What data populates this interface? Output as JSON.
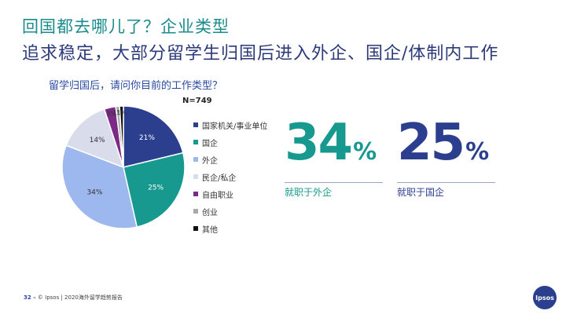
{
  "header": {
    "title": "回国都去哪儿了？企业类型",
    "subtitle": "追求稳定，大部分留学生归国后进入外企、国企/体制内工作"
  },
  "chart_data": {
    "type": "pie",
    "title": "留学归国后，请问你目前的工作类型？",
    "sample": "N=749",
    "slices": [
      {
        "label": "国家机关/事业单位",
        "value": 21,
        "display": "21%",
        "color": "#2c3f8f"
      },
      {
        "label": "国企",
        "value": 25,
        "display": "25%",
        "color": "#17998f"
      },
      {
        "label": "外企",
        "value": 34,
        "display": "34%",
        "color": "#9db8ee"
      },
      {
        "label": "民企/私企",
        "value": 14,
        "display": "14%",
        "color": "#d9dcea"
      },
      {
        "label": "自由职业",
        "value": 3,
        "display": "3%",
        "color": "#7b2a86"
      },
      {
        "label": "创业",
        "value": 1,
        "display": "1%",
        "color": "#a9a9a9"
      },
      {
        "label": "其他",
        "value": 1,
        "display": "1%",
        "color": "#111111"
      }
    ]
  },
  "stats": [
    {
      "value": "34",
      "unit": "%",
      "label": "就职于外企",
      "color": "#17998f"
    },
    {
      "value": "25",
      "unit": "%",
      "label": "就职于国企",
      "color": "#2c3f8f"
    }
  ],
  "footer": {
    "page": "32 –",
    "text": "© Ipsos | 2020海外留学趋势报告"
  },
  "logo": "Ipsos"
}
